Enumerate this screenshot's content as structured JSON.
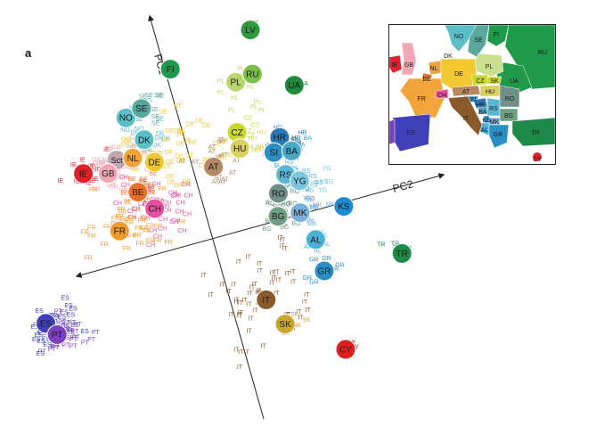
{
  "panel_label": "a",
  "chart_data": {
    "type": "scatter",
    "title": "",
    "axes": [
      {
        "label": "PC1",
        "direction": "diagonal-up-left"
      },
      {
        "label": "PC2",
        "direction": "diagonal-right"
      }
    ],
    "grid": false,
    "legend": "inset map top-right",
    "groups": [
      {
        "code": "IE",
        "color": "#e0202a",
        "center": [
          -1.55,
          1.2
        ],
        "spread": [
          0.32,
          0.18
        ],
        "n": 18
      },
      {
        "code": "GB",
        "color": "#f3a7b4",
        "center": [
          -1.2,
          1.12
        ],
        "spread": [
          0.36,
          0.22
        ],
        "n": 26
      },
      {
        "code": "Sct",
        "color": "#bfa7b2",
        "center": [
          -1.05,
          1.22
        ],
        "spread": [
          0.2,
          0.12
        ],
        "n": 8
      },
      {
        "code": "NL",
        "color": "#f0a43a",
        "center": [
          -0.85,
          1.2
        ],
        "spread": [
          0.2,
          0.12
        ],
        "n": 8
      },
      {
        "code": "DK",
        "color": "#5cbfc8",
        "center": [
          -0.65,
          1.38
        ],
        "spread": [
          0.18,
          0.14
        ],
        "n": 8
      },
      {
        "code": "NO",
        "color": "#5cbfc8",
        "center": [
          -0.75,
          1.72
        ],
        "spread": [
          0.2,
          0.16
        ],
        "n": 8
      },
      {
        "code": "SE",
        "color": "#5aa79e",
        "center": [
          -0.55,
          1.75
        ],
        "spread": [
          0.22,
          0.18
        ],
        "n": 10
      },
      {
        "code": "FI",
        "color": "#1e9a4a",
        "center": [
          -0.2,
          2.15
        ],
        "spread": [
          0.1,
          0.08
        ],
        "n": 3
      },
      {
        "code": "DE",
        "color": "#f2c832",
        "center": [
          -0.35,
          1.2
        ],
        "spread": [
          0.5,
          0.4
        ],
        "n": 40
      },
      {
        "code": "BE",
        "color": "#e8702a",
        "center": [
          -0.95,
          0.8
        ],
        "spread": [
          0.22,
          0.18
        ],
        "n": 14
      },
      {
        "code": "CH",
        "color": "#e54f9e",
        "center": [
          -0.8,
          0.55
        ],
        "spread": [
          0.4,
          0.3
        ],
        "n": 40
      },
      {
        "code": "FR",
        "color": "#f09b2e",
        "center": [
          -1.25,
          0.4
        ],
        "spread": [
          0.45,
          0.35
        ],
        "n": 40
      },
      {
        "code": "AT",
        "color": "#b5885f",
        "center": [
          0.05,
          0.9
        ],
        "spread": [
          0.3,
          0.25
        ],
        "n": 16
      },
      {
        "code": "CZ",
        "color": "#c8d82c",
        "center": [
          0.45,
          1.15
        ],
        "spread": [
          0.22,
          0.18
        ],
        "n": 10
      },
      {
        "code": "HU",
        "color": "#d8d060",
        "center": [
          0.45,
          0.95
        ],
        "spread": [
          0.22,
          0.16
        ],
        "n": 10
      },
      {
        "code": "PL",
        "color": "#bcd66e",
        "center": [
          0.6,
          1.65
        ],
        "spread": [
          0.28,
          0.22
        ],
        "n": 12
      },
      {
        "code": "RU",
        "color": "#7bbf4a",
        "center": [
          0.75,
          1.75
        ],
        "spread": [
          0.2,
          0.18
        ],
        "n": 8
      },
      {
        "code": "LV",
        "color": "#2e9a3e",
        "center": [
          0.9,
          2.35
        ],
        "spread": [
          0.1,
          0.08
        ],
        "n": 3
      },
      {
        "code": "UA",
        "color": "#1e8a3a",
        "center": [
          1.25,
          1.55
        ],
        "spread": [
          0.1,
          0.08
        ],
        "n": 3
      },
      {
        "code": "HR",
        "color": "#2a78b8",
        "center": [
          1.0,
          0.9
        ],
        "spread": [
          0.22,
          0.16
        ],
        "n": 10
      },
      {
        "code": "SI",
        "color": "#2a90c4",
        "center": [
          0.85,
          0.8
        ],
        "spread": [
          0.2,
          0.14
        ],
        "n": 8
      },
      {
        "code": "BA",
        "color": "#4aa7c8",
        "center": [
          1.1,
          0.75
        ],
        "spread": [
          0.2,
          0.14
        ],
        "n": 8
      },
      {
        "code": "RS",
        "color": "#5ab6d2",
        "center": [
          0.95,
          0.45
        ],
        "spread": [
          0.24,
          0.18
        ],
        "n": 12
      },
      {
        "code": "YG",
        "color": "#7ac6e0",
        "center": [
          1.1,
          0.3
        ],
        "spread": [
          0.3,
          0.24
        ],
        "n": 14
      },
      {
        "code": "RO",
        "color": "#6f8f88",
        "center": [
          0.75,
          0.25
        ],
        "spread": [
          0.26,
          0.2
        ],
        "n": 12
      },
      {
        "code": "BG",
        "color": "#6f9f80",
        "center": [
          0.65,
          0.0
        ],
        "spread": [
          0.22,
          0.16
        ],
        "n": 10
      },
      {
        "code": "MK",
        "color": "#7aaedb",
        "center": [
          0.95,
          -0.05
        ],
        "spread": [
          0.22,
          0.16
        ],
        "n": 10
      },
      {
        "code": "KS",
        "color": "#1e8ad2",
        "center": [
          1.45,
          -0.05
        ],
        "spread": [
          0.1,
          0.08
        ],
        "n": 3
      },
      {
        "code": "AL",
        "color": "#4ab2d8",
        "center": [
          1.05,
          -0.4
        ],
        "spread": [
          0.18,
          0.14
        ],
        "n": 8
      },
      {
        "code": "GR",
        "color": "#2a8fc4",
        "center": [
          1.05,
          -0.75
        ],
        "spread": [
          0.22,
          0.18
        ],
        "n": 10
      },
      {
        "code": "TR",
        "color": "#1e8a4a",
        "center": [
          2.0,
          -0.8
        ],
        "spread": [
          0.2,
          0.18
        ],
        "n": 5
      },
      {
        "code": "IT",
        "color": "#8b5a2b",
        "center": [
          0.15,
          -0.9
        ],
        "spread": [
          0.6,
          0.55
        ],
        "n": 60
      },
      {
        "code": "SK",
        "color": "#c8a830",
        "center": [
          0.4,
          -1.25
        ],
        "spread": [
          0.18,
          0.14
        ],
        "n": 6
      },
      {
        "code": "CY",
        "color": "#e02020",
        "center": [
          1.05,
          -1.75
        ],
        "spread": [
          0.08,
          0.06
        ],
        "n": 6
      },
      {
        "code": "ES",
        "color": "#4040b8",
        "center": [
          -2.45,
          -0.55
        ],
        "spread": [
          0.3,
          0.22
        ],
        "n": 40
      },
      {
        "code": "PT",
        "color": "#7a40c0",
        "center": [
          -2.35,
          -0.65
        ],
        "spread": [
          0.3,
          0.22
        ],
        "n": 30
      }
    ],
    "centroid_labels": [
      {
        "code": "LV",
        "x": 0.9,
        "y": 2.35
      },
      {
        "code": "FI",
        "x": -0.2,
        "y": 2.15
      },
      {
        "code": "PL",
        "x": 0.55,
        "y": 1.78
      },
      {
        "code": "RU",
        "x": 0.78,
        "y": 1.82
      },
      {
        "code": "NO",
        "x": -0.9,
        "y": 1.72
      },
      {
        "code": "SE",
        "x": -0.68,
        "y": 1.78
      },
      {
        "code": "UA",
        "x": 1.25,
        "y": 1.55
      },
      {
        "code": "DK",
        "x": -0.75,
        "y": 1.4
      },
      {
        "code": "IE",
        "x": -1.6,
        "y": 1.2
      },
      {
        "code": "Sct",
        "x": -1.15,
        "y": 1.25
      },
      {
        "code": "NL",
        "x": -0.95,
        "y": 1.22
      },
      {
        "code": "GB",
        "x": -1.3,
        "y": 1.12
      },
      {
        "code": "DE",
        "x": -0.7,
        "y": 1.1
      },
      {
        "code": "CZ",
        "x": 0.4,
        "y": 1.18
      },
      {
        "code": "HU",
        "x": 0.38,
        "y": 0.98
      },
      {
        "code": "HR",
        "x": 0.9,
        "y": 0.98
      },
      {
        "code": "AT",
        "x": 0.0,
        "y": 0.85
      },
      {
        "code": "SI",
        "x": 0.78,
        "y": 0.82
      },
      {
        "code": "BA",
        "x": 1.0,
        "y": 0.78
      },
      {
        "code": "BE",
        "x": -1.0,
        "y": 0.8
      },
      {
        "code": "CH",
        "x": -0.85,
        "y": 0.55
      },
      {
        "code": "RS",
        "x": 0.85,
        "y": 0.52
      },
      {
        "code": "YG",
        "x": 1.0,
        "y": 0.4
      },
      {
        "code": "FR",
        "x": -1.35,
        "y": 0.4
      },
      {
        "code": "RO",
        "x": 0.7,
        "y": 0.32
      },
      {
        "code": "BG",
        "x": 0.62,
        "y": 0.05
      },
      {
        "code": "MK",
        "x": 0.9,
        "y": 0.02
      },
      {
        "code": "KS",
        "x": 1.45,
        "y": -0.05
      },
      {
        "code": "AL",
        "x": 1.0,
        "y": -0.35
      },
      {
        "code": "ES",
        "x": -2.55,
        "y": -0.45
      },
      {
        "code": "PT",
        "x": -2.45,
        "y": -0.62
      },
      {
        "code": "GR",
        "x": 1.0,
        "y": -0.75
      },
      {
        "code": "TR",
        "x": 2.0,
        "y": -0.8
      },
      {
        "code": "IT",
        "x": 0.2,
        "y": -0.9
      },
      {
        "code": "SK",
        "x": 0.35,
        "y": -1.25
      },
      {
        "code": "CY",
        "x": 1.0,
        "y": -1.75
      }
    ]
  },
  "inset_map": {
    "labels": [
      "NO",
      "SE",
      "FI",
      "RU",
      "IE",
      "GB",
      "NL",
      "DK",
      "PL",
      "DE",
      "BE",
      "CZ",
      "SK",
      "UA",
      "FR",
      "CH",
      "AT",
      "HU",
      "RO",
      "SI",
      "HR",
      "BA",
      "RS",
      "BG",
      "ES",
      "IT",
      "MK",
      "KS",
      "AL",
      "GR",
      "TR",
      "CY"
    ]
  }
}
